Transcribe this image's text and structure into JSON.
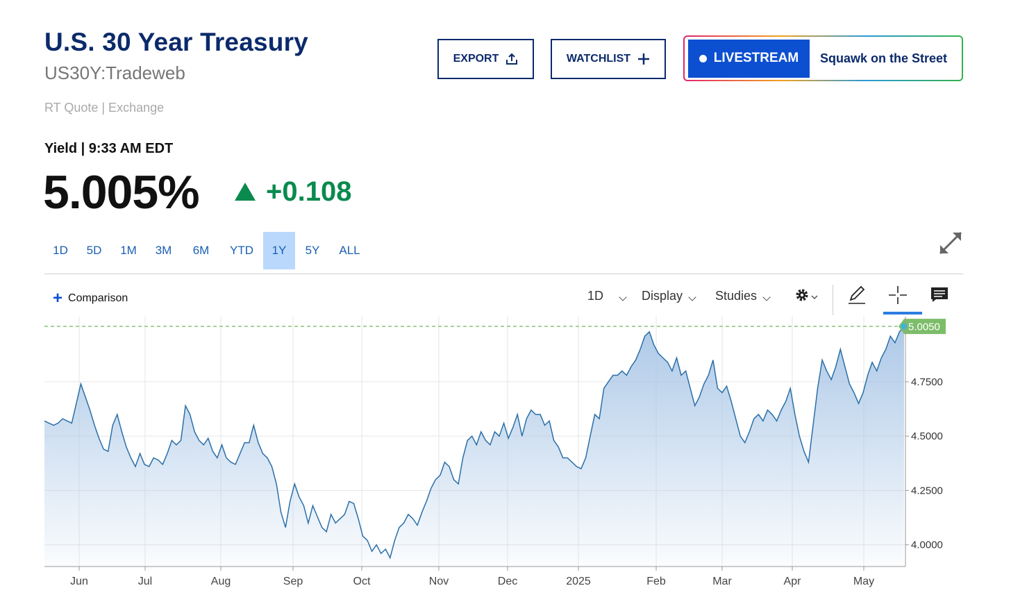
{
  "header": {
    "title": "U.S. 30 Year Treasury",
    "symbol": "US30Y:Tradeweb",
    "quote_source": "RT Quote | Exchange"
  },
  "actions": {
    "export_label": "EXPORT",
    "watchlist_label": "WATCHLIST",
    "livestream_label": "LIVESTREAM",
    "livestream_show": "Squawk on the Street"
  },
  "quote": {
    "label": "Yield | 9:33 AM EDT",
    "value": "5.005%",
    "change": "+0.108",
    "direction": "up"
  },
  "ranges": [
    "1D",
    "5D",
    "1M",
    "3M",
    "6M",
    "YTD",
    "1Y",
    "5Y",
    "ALL"
  ],
  "active_range": "1Y",
  "toolbar": {
    "comparison_label": "Comparison",
    "interval_label": "1D",
    "display_label": "Display",
    "studies_label": "Studies",
    "icons": [
      "gear-icon",
      "pencil-icon",
      "crosshair-icon",
      "comment-icon"
    ]
  },
  "colors": {
    "brand": "#0b2a6b",
    "accent": "#0d4fd1",
    "up": "#0a8a4e",
    "line": "#2a6fa8",
    "fill_top": "#a9c6e6",
    "current_tag": "#7dbd6a"
  },
  "chart_data": {
    "type": "area",
    "series": [
      {
        "values": [
          4.57,
          4.56,
          4.55,
          4.56,
          4.58,
          4.57,
          4.56,
          4.65,
          4.74,
          4.68,
          4.62,
          4.55,
          4.49,
          4.44,
          4.43,
          4.55,
          4.6,
          4.52,
          4.45,
          4.4,
          4.36,
          4.42,
          4.37,
          4.36,
          4.4,
          4.39,
          4.37,
          4.42,
          4.48,
          4.46,
          4.48,
          4.64,
          4.6,
          4.52,
          4.48,
          4.46,
          4.49,
          4.43,
          4.4,
          4.46,
          4.4,
          4.38,
          4.37,
          4.42,
          4.47,
          4.47,
          4.55,
          4.47,
          4.42,
          4.4,
          4.36,
          4.28,
          4.15,
          4.08,
          4.2,
          4.28,
          4.22,
          4.18,
          4.1,
          4.18,
          4.13,
          4.08,
          4.06,
          4.14,
          4.1,
          4.12,
          4.14,
          4.2,
          4.19,
          4.12,
          4.04,
          4.02,
          3.97,
          4.0,
          3.96,
          3.98,
          3.94,
          4.02,
          4.08,
          4.1,
          4.14,
          4.12,
          4.09,
          4.15,
          4.2,
          4.26,
          4.3,
          4.32,
          4.38,
          4.36,
          4.3,
          4.28,
          4.4,
          4.48,
          4.5,
          4.46,
          4.52,
          4.48,
          4.46,
          4.52,
          4.5,
          4.56,
          4.49,
          4.54,
          4.6,
          4.5,
          4.58,
          4.62,
          4.6,
          4.6,
          4.55,
          4.57,
          4.48,
          4.45,
          4.4,
          4.4,
          4.38,
          4.36,
          4.35,
          4.4,
          4.5,
          4.6,
          4.58,
          4.72,
          4.75,
          4.78,
          4.78,
          4.8,
          4.78,
          4.82,
          4.85,
          4.9,
          4.96,
          4.98,
          4.92,
          4.88,
          4.86,
          4.84,
          4.8,
          4.86,
          4.78,
          4.8,
          4.72,
          4.64,
          4.68,
          4.74,
          4.78,
          4.85,
          4.72,
          4.7,
          4.73,
          4.66,
          4.58,
          4.5,
          4.47,
          4.52,
          4.58,
          4.6,
          4.57,
          4.62,
          4.6,
          4.57,
          4.62,
          4.66,
          4.72,
          4.6,
          4.5,
          4.43,
          4.38,
          4.55,
          4.72,
          4.85,
          4.8,
          4.76,
          4.82,
          4.9,
          4.82,
          4.74,
          4.7,
          4.65,
          4.7,
          4.78,
          4.84,
          4.8,
          4.86,
          4.9,
          4.96,
          4.93,
          4.98,
          5.005
        ]
      }
    ],
    "x_start": "2024-05-21",
    "x_end": "2025-05-21",
    "x_ticks": [
      "Jun",
      "Jul",
      "Aug",
      "Sep",
      "Oct",
      "Nov",
      "Dec",
      "2025",
      "Feb",
      "Mar",
      "Apr",
      "May"
    ],
    "y_ticks": [
      "4.0000",
      "4.2500",
      "4.5000",
      "4.7500"
    ],
    "ylim": [
      3.9,
      5.05
    ],
    "current_value": 5.005,
    "current_label": "5.0050",
    "grid": true
  }
}
